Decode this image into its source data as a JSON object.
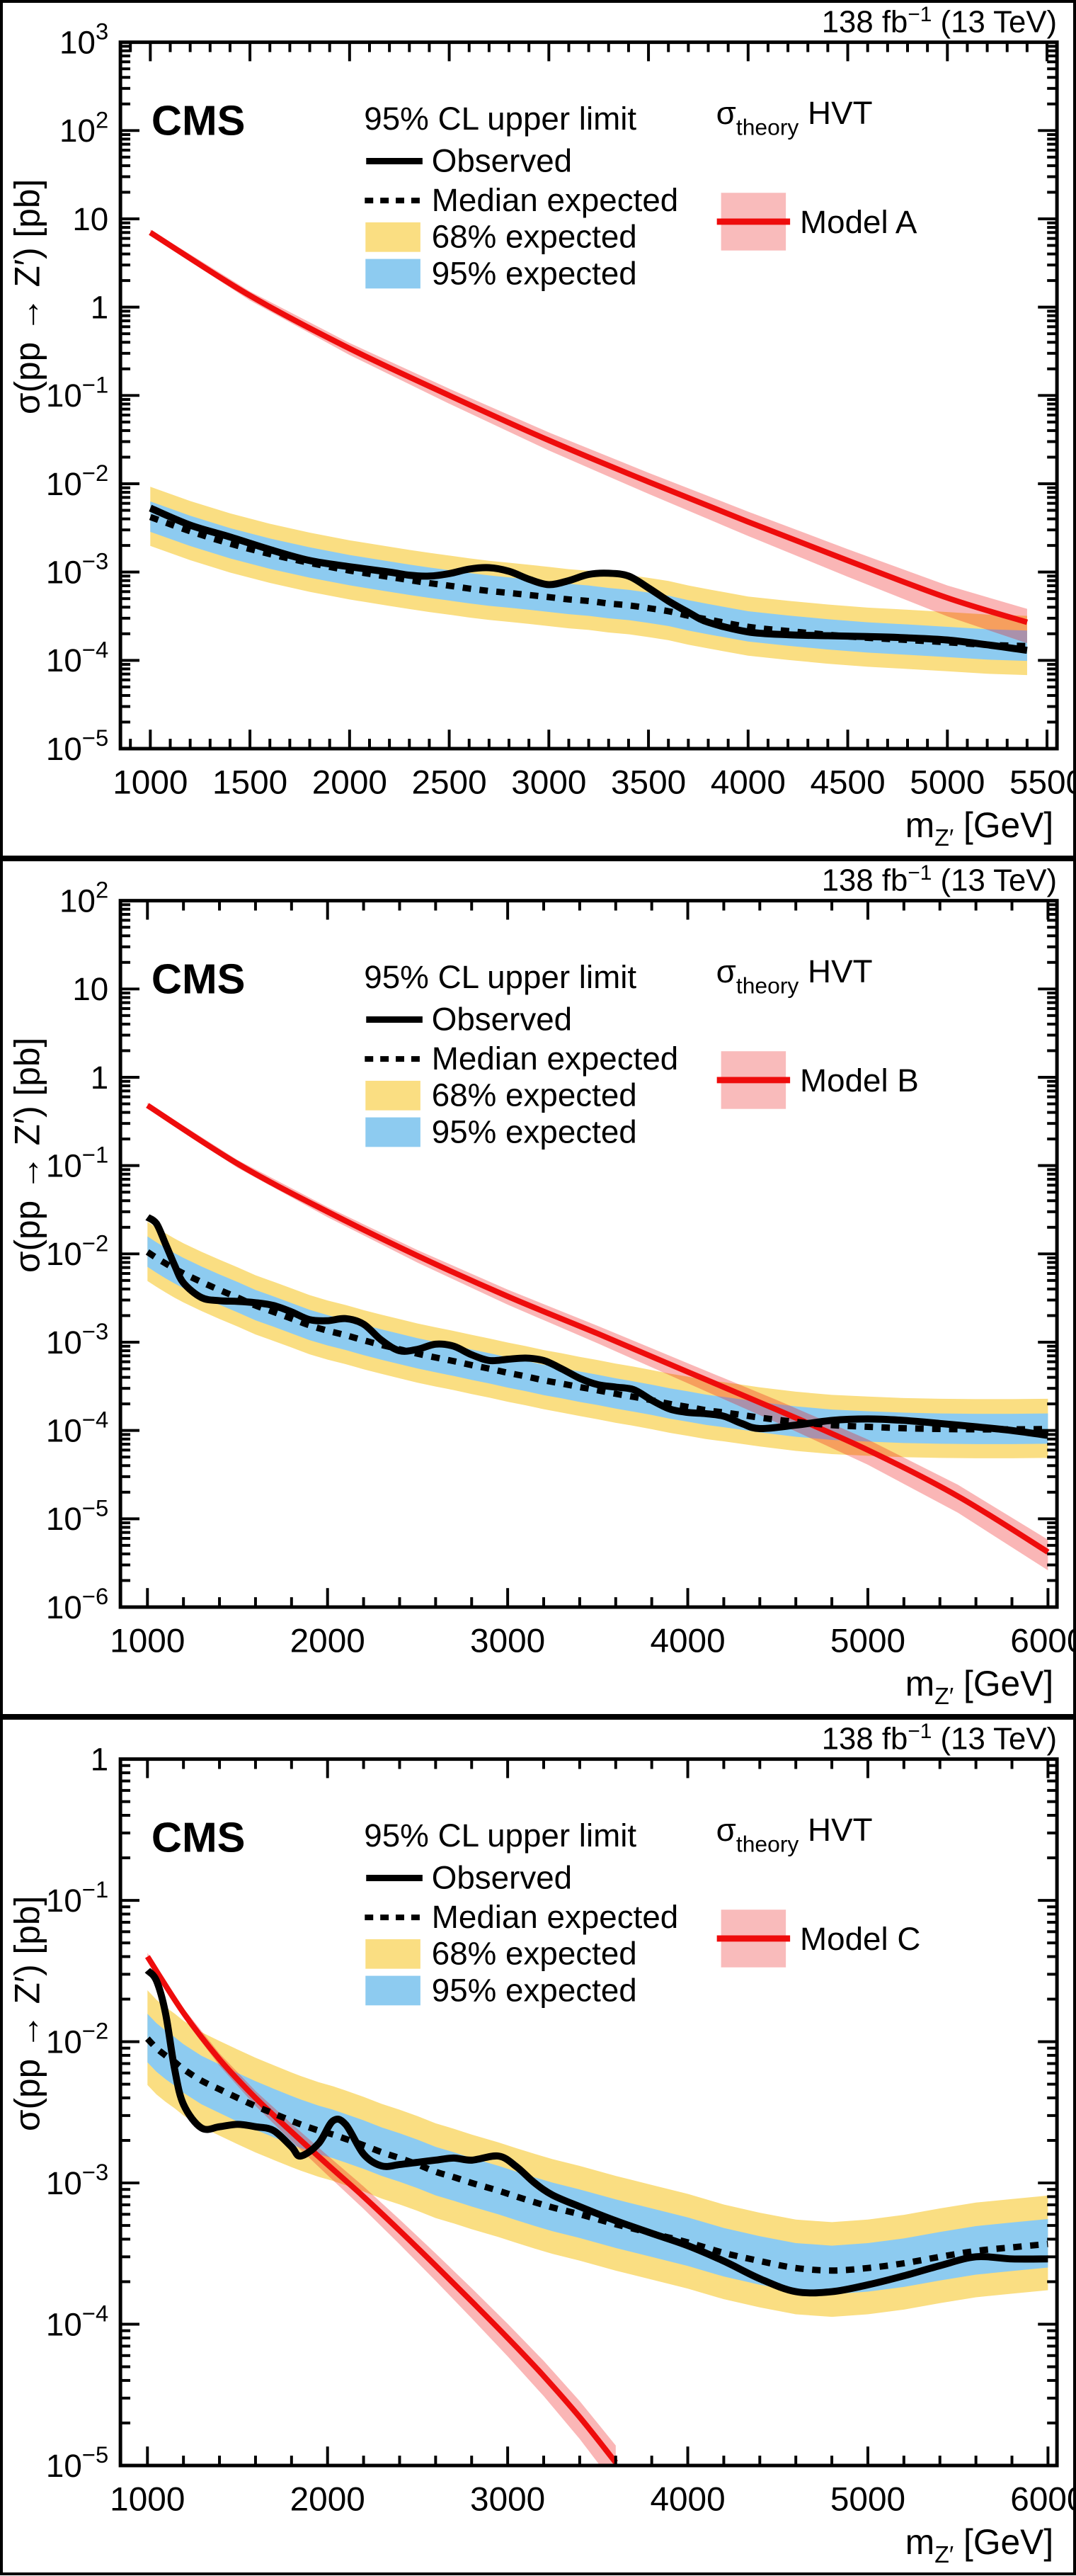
{
  "shared": {
    "experiment_label": "CMS",
    "lumi_label": {
      "text": "138 fb",
      "sup": "−1",
      "rest": " (13 TeV)"
    },
    "y_axis_label": "σ(pp → Z′) [pb]",
    "x_axis_label": {
      "base": "m",
      "sub": "Z′",
      "rest": " [GeV]"
    },
    "limit_legend": {
      "title": "95% CL upper limit",
      "observed": "Observed",
      "median": "Median expected",
      "band68": "68% expected",
      "band95": "95% expected"
    },
    "theory_legend": {
      "sigma": "σ",
      "sub": "theory",
      "rest": " HVT"
    },
    "colors": {
      "band_yellow": "#FADE82",
      "band_blue": "#8DCBF0",
      "theory_red": "#EE0C0C",
      "theory_band_pink": "#F9BBBB",
      "line_black": "#000000"
    }
  },
  "chart_data": [
    {
      "type": "line",
      "model_label": "Model A",
      "xlim": [
        850,
        5550
      ],
      "x_major_ticks": [
        1000,
        1500,
        2000,
        2500,
        3000,
        3500,
        4000,
        4500,
        5000,
        5500
      ],
      "x_minor_step": 100,
      "ylim_exp": [
        -5,
        3
      ],
      "x": [
        1000,
        1200,
        1400,
        1600,
        1800,
        2000,
        2200,
        2300,
        2400,
        2500,
        2600,
        2700,
        2800,
        2900,
        3000,
        3100,
        3200,
        3300,
        3400,
        3500,
        3600,
        3700,
        3800,
        4000,
        4200,
        4400,
        4600,
        4800,
        5000,
        5200,
        5400
      ],
      "observed": [
        0.0053,
        0.0034,
        0.0025,
        0.0018,
        0.00135,
        0.00115,
        0.001,
        0.00092,
        0.0009,
        0.00096,
        0.00108,
        0.00112,
        0.00102,
        0.00083,
        0.00072,
        0.0008,
        0.00094,
        0.00097,
        0.0009,
        0.00066,
        0.00047,
        0.00035,
        0.00027,
        0.00021,
        0.000195,
        0.00019,
        0.000186,
        0.00018,
        0.00017,
        0.00015,
        0.00013
      ],
      "median": [
        0.0042,
        0.0029,
        0.0021,
        0.0016,
        0.00127,
        0.00104,
        0.00088,
        0.00081,
        0.00075,
        0.0007,
        0.00065,
        0.00061,
        0.00058,
        0.00055,
        0.00052,
        0.00049,
        0.00047,
        0.00044,
        0.00042,
        0.00039,
        0.00036,
        0.00032,
        0.00029,
        0.00024,
        0.000215,
        0.000195,
        0.00018,
        0.00017,
        0.00016,
        0.00015,
        0.000145
      ],
      "band68_expected": {
        "color": "yellow",
        "up_factor": 2.2,
        "down_factor": 0.47
      },
      "band95_expected": {
        "color": "blue",
        "up_factor": 1.5,
        "down_factor": 0.68
      },
      "theory": {
        "x": [
          1000,
          1500,
          2000,
          2500,
          3000,
          3500,
          4000,
          4500,
          5000,
          5400
        ],
        "y": [
          7.0,
          1.35,
          0.34,
          0.1,
          0.031,
          0.0105,
          0.0037,
          0.00135,
          0.00051,
          0.00027
        ],
        "band_frac": [
          0.08,
          0.42
        ]
      }
    },
    {
      "type": "line",
      "model_label": "Model B",
      "xlim": [
        850,
        6050
      ],
      "x_major_ticks": [
        1000,
        2000,
        3000,
        4000,
        5000,
        6000
      ],
      "x_minor_step": 200,
      "ylim_exp": [
        -6,
        2
      ],
      "x": [
        1000,
        1050,
        1100,
        1150,
        1200,
        1300,
        1400,
        1500,
        1600,
        1700,
        1800,
        1900,
        2000,
        2100,
        2200,
        2300,
        2400,
        2500,
        2600,
        2700,
        2800,
        2900,
        3000,
        3100,
        3200,
        3300,
        3400,
        3500,
        3600,
        3700,
        3800,
        3900,
        4000,
        4100,
        4200,
        4300,
        4400,
        4600,
        4800,
        5000,
        5200,
        5400,
        5600,
        5800,
        6000
      ],
      "observed": [
        0.026,
        0.022,
        0.013,
        0.0075,
        0.0047,
        0.0032,
        0.00295,
        0.0029,
        0.0028,
        0.0026,
        0.0022,
        0.0018,
        0.00175,
        0.00185,
        0.0016,
        0.00105,
        0.0008,
        0.00083,
        0.00095,
        0.0009,
        0.00072,
        0.00062,
        0.00064,
        0.00066,
        0.00062,
        0.0005,
        0.00039,
        0.00033,
        0.00031,
        0.00029,
        0.00022,
        0.000175,
        0.00016,
        0.000155,
        0.000145,
        0.00012,
        0.000105,
        0.000115,
        0.00013,
        0.000135,
        0.00013,
        0.00012,
        0.00011,
        0.0001,
        8.8e-05
      ],
      "median": [
        0.0105,
        0.009,
        0.0078,
        0.0068,
        0.006,
        0.0048,
        0.0039,
        0.0032,
        0.0026,
        0.0022,
        0.00185,
        0.00155,
        0.00135,
        0.0012,
        0.00105,
        0.00093,
        0.00083,
        0.00074,
        0.00067,
        0.00061,
        0.00055,
        0.0005,
        0.00045,
        0.00041,
        0.00037,
        0.00034,
        0.00031,
        0.000285,
        0.00026,
        0.00024,
        0.00022,
        0.0002,
        0.000185,
        0.00017,
        0.00016,
        0.00015,
        0.00014,
        0.000125,
        0.000115,
        0.00011,
        0.000106,
        0.000104,
        0.000103,
        0.000103,
        0.000104
      ],
      "band68_expected": {
        "color": "yellow",
        "up_factor": 2.2,
        "down_factor": 0.47
      },
      "band95_expected": {
        "color": "blue",
        "up_factor": 1.5,
        "down_factor": 0.68
      },
      "theory": {
        "x": [
          1000,
          1500,
          2000,
          2500,
          3000,
          3500,
          4000,
          4500,
          5000,
          5500,
          6000
        ],
        "y": [
          0.48,
          0.105,
          0.03,
          0.0095,
          0.0033,
          0.00125,
          0.00046,
          0.00017,
          6e-05,
          1.8e-05,
          4.2e-06
        ],
        "band_frac": [
          0.07,
          0.38
        ]
      }
    },
    {
      "type": "line",
      "model_label": "Model C",
      "xlim": [
        850,
        6050
      ],
      "x_major_ticks": [
        1000,
        2000,
        3000,
        4000,
        5000,
        6000
      ],
      "x_minor_step": 200,
      "ylim_exp": [
        -5,
        0
      ],
      "x": [
        1000,
        1050,
        1100,
        1150,
        1200,
        1300,
        1400,
        1500,
        1600,
        1700,
        1800,
        1850,
        1950,
        2030,
        2100,
        2200,
        2300,
        2400,
        2500,
        2600,
        2700,
        2800,
        2950,
        3050,
        3150,
        3250,
        3400,
        3600,
        3800,
        4000,
        4200,
        4400,
        4600,
        4800,
        5000,
        5200,
        5400,
        5600,
        5800,
        6000
      ],
      "observed": [
        0.032,
        0.027,
        0.016,
        0.0065,
        0.0036,
        0.00245,
        0.0025,
        0.0026,
        0.0025,
        0.00235,
        0.0018,
        0.00155,
        0.0019,
        0.00275,
        0.0026,
        0.0016,
        0.00132,
        0.00135,
        0.0014,
        0.00145,
        0.0015,
        0.00145,
        0.00155,
        0.0013,
        0.001,
        0.00082,
        0.00068,
        0.00054,
        0.00044,
        0.00036,
        0.00028,
        0.00021,
        0.00017,
        0.00017,
        0.00019,
        0.00022,
        0.00026,
        0.0003,
        0.00029,
        0.00029
      ],
      "median": [
        0.0105,
        0.009,
        0.008,
        0.0072,
        0.0064,
        0.0053,
        0.0046,
        0.004,
        0.0035,
        0.0031,
        0.00275,
        0.0026,
        0.00235,
        0.0022,
        0.00205,
        0.00185,
        0.00165,
        0.0015,
        0.00135,
        0.0012,
        0.0011,
        0.001,
        0.00088,
        0.0008,
        0.00073,
        0.00067,
        0.0006,
        0.00051,
        0.00044,
        0.00038,
        0.00032,
        0.00028,
        0.00025,
        0.00024,
        0.00025,
        0.00027,
        0.0003,
        0.00033,
        0.00035,
        0.00037
      ],
      "band68_expected": {
        "color": "yellow",
        "up_factor": 2.2,
        "down_factor": 0.47
      },
      "band95_expected": {
        "color": "blue",
        "up_factor": 1.5,
        "down_factor": 0.68
      },
      "theory": {
        "x": [
          1000,
          1200,
          1400,
          1600,
          1800,
          2000,
          2200,
          2400,
          2600,
          2800,
          3000,
          3200,
          3400,
          3600
        ],
        "y": [
          0.04,
          0.016,
          0.0075,
          0.004,
          0.0023,
          0.00135,
          0.0008,
          0.00046,
          0.00026,
          0.000145,
          8e-05,
          4.3e-05,
          2.2e-05,
          1.05e-05
        ],
        "band_frac": [
          0.06,
          0.32
        ]
      }
    }
  ]
}
